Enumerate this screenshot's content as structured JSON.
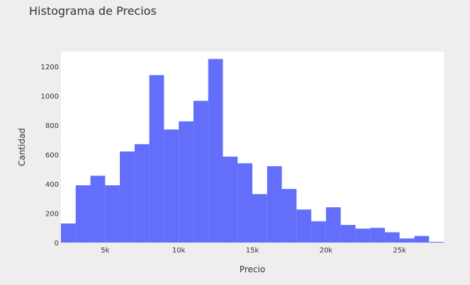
{
  "chart_data": {
    "type": "bar",
    "title": "Histograma de Precios",
    "xlabel": "Precio",
    "ylabel": "Cantidad",
    "bar_color": "#636efa",
    "plot_background": "#ffffff",
    "page_background": "#eeeeee",
    "grid": false,
    "xlim": [
      2000,
      28000
    ],
    "ylim": [
      0,
      1300
    ],
    "bin_width": 1000,
    "bins": [
      2000,
      3000,
      4000,
      5000,
      6000,
      7000,
      8000,
      9000,
      10000,
      11000,
      12000,
      13000,
      14000,
      15000,
      16000,
      17000,
      18000,
      19000,
      20000,
      21000,
      22000,
      23000,
      24000,
      25000,
      26000,
      27000
    ],
    "values": [
      130,
      390,
      455,
      390,
      620,
      670,
      1140,
      770,
      825,
      965,
      1250,
      585,
      540,
      330,
      520,
      365,
      225,
      145,
      240,
      120,
      95,
      100,
      70,
      28,
      45,
      5
    ],
    "x_ticks": [
      5000,
      10000,
      15000,
      20000,
      25000
    ],
    "x_tick_labels": [
      "5k",
      "10k",
      "15k",
      "20k",
      "25k"
    ],
    "y_ticks": [
      0,
      200,
      400,
      600,
      800,
      1000,
      1200
    ],
    "y_tick_labels": [
      "0",
      "200",
      "400",
      "600",
      "800",
      "1000",
      "1200"
    ]
  }
}
